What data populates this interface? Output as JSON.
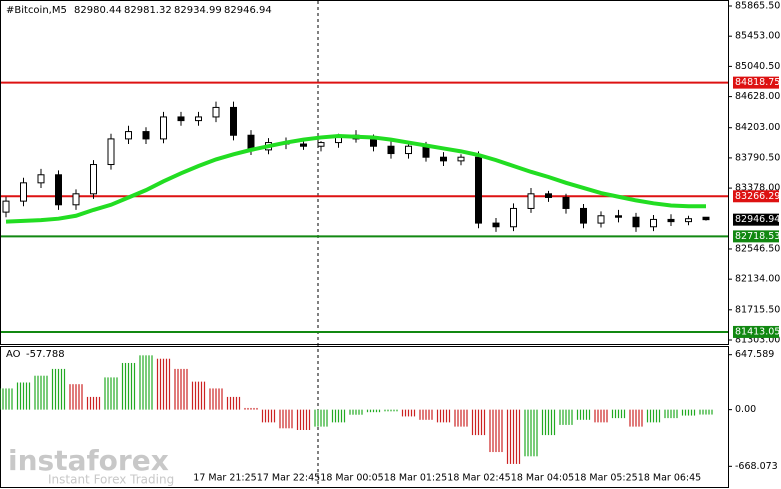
{
  "chart_data": {
    "type": "candlestick",
    "header": {
      "symbol": "#Bitcoin,M5",
      "ohlc": [
        82980.44,
        82981.32,
        82934.99,
        82946.94
      ]
    },
    "ylim": [
      81303,
      85865.5
    ],
    "yticks": [
      {
        "value": 85865.5,
        "label": "85865.50"
      },
      {
        "value": 85453,
        "label": "85453.00"
      },
      {
        "value": 85040.5,
        "label": "85040.50"
      },
      {
        "value": 84628,
        "label": "84628.00"
      },
      {
        "value": 84203,
        "label": "84203.00"
      },
      {
        "value": 83790.5,
        "label": "83790.50"
      },
      {
        "value": 83378,
        "label": "83378.00"
      },
      {
        "value": 82546.5,
        "label": "82546.50"
      },
      {
        "value": 82134,
        "label": "82134.00"
      },
      {
        "value": 81715.5,
        "label": "81715.50"
      },
      {
        "value": 81303,
        "label": "81303.00"
      }
    ],
    "open": [
      83050,
      83200,
      83450,
      83560,
      83150,
      83300,
      83700,
      84050,
      84150,
      84050,
      84350,
      84300,
      84350,
      84480,
      84100,
      83900,
      84000,
      83980,
      83950,
      84000,
      84100,
      84050,
      83950,
      83850,
      83950,
      83800,
      83750,
      83800,
      82900,
      82850,
      83100,
      83300,
      83250,
      83100,
      82900,
      83000,
      82980,
      82850,
      82950,
      82920,
      82980
    ],
    "high": [
      83260,
      83520,
      83640,
      83620,
      83360,
      83760,
      84120,
      84230,
      84210,
      84420,
      84420,
      84420,
      84560,
      84560,
      84170,
      84060,
      84070,
      84050,
      84020,
      84120,
      84170,
      84110,
      84020,
      83990,
      84010,
      83870,
      83840,
      83880,
      82970,
      83170,
      83380,
      83340,
      83300,
      83160,
      83060,
      83080,
      83040,
      83010,
      83020,
      83000,
      82981
    ],
    "low": [
      82980,
      83130,
      83380,
      83080,
      83080,
      83230,
      83630,
      83980,
      83980,
      83990,
      84230,
      84230,
      84280,
      84030,
      83830,
      83840,
      83910,
      83900,
      83880,
      83930,
      84000,
      83880,
      83780,
      83780,
      83740,
      83680,
      83690,
      82830,
      82780,
      82790,
      83040,
      83190,
      83030,
      82830,
      82840,
      82910,
      82780,
      82790,
      82860,
      82870,
      82934
    ],
    "close": [
      83200,
      83450,
      83560,
      83150,
      83300,
      83700,
      84050,
      84150,
      84050,
      84350,
      84300,
      84350,
      84480,
      84100,
      83900,
      84000,
      83980,
      83950,
      84000,
      84100,
      84050,
      83950,
      83850,
      83950,
      83800,
      83750,
      83800,
      82900,
      82850,
      83100,
      83300,
      83250,
      83100,
      82900,
      83000,
      82980,
      82850,
      82950,
      82920,
      82960,
      82947
    ],
    "moving_average": {
      "color": "#22dd22",
      "values": [
        82920,
        82930,
        82940,
        82960,
        83000,
        83080,
        83150,
        83250,
        83350,
        83470,
        83580,
        83680,
        83770,
        83840,
        83900,
        83950,
        84000,
        84040,
        84070,
        84090,
        84080,
        84070,
        84040,
        84000,
        83960,
        83920,
        83880,
        83830,
        83760,
        83680,
        83600,
        83530,
        83450,
        83380,
        83310,
        83260,
        83210,
        83170,
        83140,
        83130,
        83130
      ]
    },
    "levels": [
      {
        "value": 84818.75,
        "color": "#dd1111"
      },
      {
        "value": 83266.29,
        "color": "#dd1111"
      },
      {
        "value": 82718.53,
        "color": "#118811"
      },
      {
        "value": 81413.05,
        "color": "#118811"
      }
    ],
    "current_price": 82946.94,
    "time_labels": [
      "17 Mar 21:25",
      "17 Mar 22:45",
      "18 Mar 00:05",
      "18 Mar 01:25",
      "18 Mar 02:45",
      "18 Mar 04:05",
      "18 Mar 05:25",
      "18 Mar 06:45"
    ],
    "ao": {
      "name": "AO",
      "last": -57.788,
      "ylim": [
        -900,
        750
      ],
      "yticks": [
        647.589,
        {
          "value": 0,
          "label": "0.00"
        },
        -668.073
      ],
      "up_color": "#22aa22",
      "down_color": "#cc2222",
      "values": [
        250,
        320,
        400,
        480,
        300,
        150,
        380,
        550,
        640,
        600,
        480,
        330,
        250,
        150,
        20,
        -150,
        -220,
        -240,
        -200,
        -150,
        -60,
        -30,
        -20,
        -80,
        -120,
        -150,
        -200,
        -300,
        -500,
        -640,
        -550,
        -300,
        -180,
        -120,
        -150,
        -100,
        -200,
        -150,
        -100,
        -70,
        -58
      ]
    },
    "watermark": {
      "brand": "instaforex",
      "tagline": "Instant Forex Trading"
    }
  }
}
